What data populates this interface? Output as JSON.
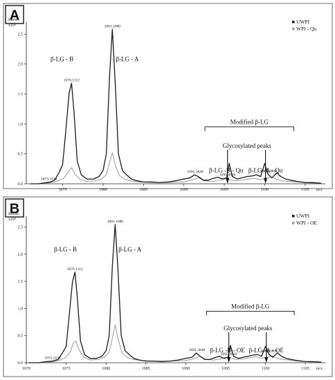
{
  "chart_data": [
    {
      "type": "line",
      "panel_label": "A",
      "ylabel": "Intens.",
      "y_multiplier": "x10⁴",
      "xlabel": "m/z",
      "xlim": [
        1070.5,
        1107.5
      ],
      "ylim": [
        0,
        2.7
      ],
      "x_ticks": [
        1075,
        1080,
        1085,
        1090,
        1095,
        1100,
        1105
      ],
      "x_tick_labels": [
        "1075",
        "1080",
        "1085",
        "1090",
        "1095",
        "1100",
        "1105"
      ],
      "y_ticks": [
        0.0,
        0.5,
        1.0,
        1.5,
        2.0,
        2.5
      ],
      "y_tick_labels": [
        "0.0",
        "0.5",
        "1.0",
        "1.5",
        "2.0",
        "2.5"
      ],
      "legend_position": "top-right",
      "legend": [
        "UWPI",
        "WPI - Qu"
      ],
      "series": [
        {
          "name": "UWPI",
          "color": "#1a1a1a",
          "x": [
            1071.0,
            1072.0,
            1073.0,
            1073.5,
            1074.0,
            1074.6,
            1075.0,
            1075.4,
            1075.8,
            1076.1,
            1076.4,
            1076.8,
            1077.3,
            1078.0,
            1078.8,
            1079.5,
            1080.0,
            1080.4,
            1080.8,
            1081.15,
            1081.5,
            1081.9,
            1082.4,
            1082.9,
            1083.5,
            1084.2,
            1085.0,
            1086.0,
            1087.0,
            1088.0,
            1089.0,
            1090.0,
            1090.8,
            1091.3,
            1091.8,
            1092.4,
            1093.0,
            1093.6,
            1094.2,
            1094.8,
            1095.3,
            1095.6,
            1096.0,
            1096.6,
            1097.2,
            1097.8,
            1098.4,
            1099.0,
            1099.5,
            1100.0,
            1100.4,
            1100.9,
            1101.5,
            1102.0,
            1102.6,
            1103.2,
            1104.0,
            1105.0,
            1106.0,
            1107.0
          ],
          "y": [
            0.0,
            0.0,
            0.02,
            0.03,
            0.06,
            0.2,
            0.32,
            0.9,
            1.52,
            1.68,
            1.2,
            0.38,
            0.15,
            0.08,
            0.08,
            0.12,
            0.22,
            0.5,
            1.8,
            2.58,
            1.7,
            0.5,
            0.22,
            0.15,
            0.08,
            0.05,
            0.03,
            0.03,
            0.02,
            0.03,
            0.05,
            0.08,
            0.1,
            0.15,
            0.12,
            0.06,
            0.06,
            0.09,
            0.11,
            0.08,
            0.1,
            0.34,
            0.12,
            0.08,
            0.1,
            0.12,
            0.13,
            0.15,
            0.12,
            0.34,
            0.16,
            0.1,
            0.18,
            0.12,
            0.08,
            0.06,
            0.04,
            0.02,
            0.02,
            0.01
          ]
        },
        {
          "name": "WPI - Qu",
          "color": "#9a9a9a",
          "x": [
            1071.0,
            1072.0,
            1073.0,
            1074.0,
            1074.6,
            1075.2,
            1075.7,
            1076.1,
            1076.5,
            1077.2,
            1078.0,
            1079.0,
            1079.8,
            1080.4,
            1080.8,
            1081.15,
            1081.5,
            1082.0,
            1082.6,
            1083.4,
            1084.5,
            1086.0,
            1088.0,
            1090.0,
            1091.2,
            1091.8,
            1092.5,
            1093.5,
            1094.4,
            1095.0,
            1095.6,
            1096.3,
            1097.2,
            1098.0,
            1098.8,
            1099.5,
            1100.2,
            1100.8,
            1101.5,
            1102.2,
            1103.0,
            1104.0,
            1105.0,
            1106.0,
            1107.0
          ],
          "y": [
            0.0,
            0.0,
            0.01,
            0.03,
            0.06,
            0.1,
            0.2,
            0.27,
            0.16,
            0.07,
            0.04,
            0.05,
            0.08,
            0.15,
            0.35,
            0.52,
            0.32,
            0.14,
            0.08,
            0.05,
            0.03,
            0.02,
            0.02,
            0.03,
            0.07,
            0.1,
            0.05,
            0.04,
            0.06,
            0.08,
            0.07,
            0.05,
            0.06,
            0.08,
            0.09,
            0.07,
            0.09,
            0.11,
            0.07,
            0.05,
            0.04,
            0.03,
            0.02,
            0.01,
            0.01
          ]
        }
      ],
      "peak_labels": [
        {
          "text": "1073.3143",
          "x": 1073.3
        },
        {
          "text": "1076.1112",
          "x": 1076.1
        },
        {
          "text": "1081.1680",
          "x": 1081.15
        },
        {
          "text": "1091.3848",
          "x": 1091.4
        },
        {
          "text": "1095.4916",
          "x": 1095.4
        },
        {
          "text": "1100.5938",
          "x": 1100.5
        }
      ],
      "annotations": {
        "b_label": "β-LG - B",
        "a_label": "β-LG - A",
        "modified": "Modified β-LG",
        "glycosylated": "Glycosylated peaks",
        "b_mod": "β-LG -B - Qu",
        "a_mod": "β-LG -A - Qu"
      }
    },
    {
      "type": "line",
      "panel_label": "B",
      "ylabel": "Intens.",
      "y_multiplier": "x10⁴",
      "xlabel": "m/z",
      "xlim": [
        1070,
        1107.5
      ],
      "ylim": [
        0,
        2.7
      ],
      "x_ticks": [
        1070,
        1075,
        1080,
        1085,
        1090,
        1095,
        1100,
        1105
      ],
      "x_tick_labels": [
        "1070",
        "1075",
        "1080",
        "1085",
        "1090",
        "1095",
        "1100",
        "1105"
      ],
      "y_ticks": [
        0.0,
        0.5,
        1.0,
        1.5,
        2.0,
        2.5
      ],
      "y_tick_labels": [
        "0.0",
        "0.5",
        "1.0",
        "1.5",
        "2.0",
        "2.5"
      ],
      "legend_position": "top-right",
      "legend": [
        "UWPI",
        "WPI - OE"
      ],
      "series": [
        {
          "name": "UWPI",
          "color": "#1a1a1a",
          "x": [
            1070.3,
            1071.5,
            1072.5,
            1073.3,
            1074.0,
            1074.6,
            1075.0,
            1075.4,
            1075.8,
            1076.1,
            1076.4,
            1076.8,
            1077.3,
            1078.0,
            1078.8,
            1079.5,
            1080.0,
            1080.4,
            1080.8,
            1081.15,
            1081.5,
            1081.9,
            1082.4,
            1082.9,
            1083.5,
            1084.2,
            1085.0,
            1086.0,
            1087.0,
            1088.0,
            1089.0,
            1090.0,
            1090.8,
            1091.3,
            1091.8,
            1092.4,
            1093.0,
            1093.6,
            1094.2,
            1094.8,
            1095.3,
            1095.6,
            1096.0,
            1096.6,
            1097.2,
            1097.8,
            1098.4,
            1099.0,
            1099.5,
            1100.0,
            1100.4,
            1100.9,
            1101.5,
            1102.0,
            1102.6,
            1103.2,
            1104.0,
            1105.0,
            1106.0,
            1107.0
          ],
          "y": [
            0.0,
            0.0,
            0.02,
            0.03,
            0.06,
            0.2,
            0.3,
            0.9,
            1.5,
            1.67,
            1.2,
            0.4,
            0.15,
            0.08,
            0.08,
            0.12,
            0.22,
            0.5,
            1.8,
            2.55,
            1.7,
            0.5,
            0.22,
            0.15,
            0.08,
            0.05,
            0.03,
            0.03,
            0.02,
            0.03,
            0.05,
            0.08,
            0.1,
            0.18,
            0.12,
            0.06,
            0.06,
            0.09,
            0.12,
            0.08,
            0.1,
            0.32,
            0.12,
            0.08,
            0.1,
            0.12,
            0.14,
            0.15,
            0.12,
            0.3,
            0.16,
            0.1,
            0.18,
            0.12,
            0.08,
            0.06,
            0.04,
            0.02,
            0.02,
            0.01
          ]
        },
        {
          "name": "WPI - OE",
          "color": "#9a9a9a",
          "x": [
            1070.3,
            1071.5,
            1072.5,
            1073.5,
            1074.3,
            1074.9,
            1075.5,
            1075.9,
            1076.2,
            1076.6,
            1077.2,
            1078.0,
            1079.0,
            1079.8,
            1080.4,
            1080.8,
            1081.15,
            1081.5,
            1082.0,
            1082.6,
            1083.4,
            1084.5,
            1086.0,
            1088.0,
            1090.0,
            1091.2,
            1091.8,
            1092.5,
            1093.5,
            1094.4,
            1095.0,
            1095.6,
            1096.3,
            1097.2,
            1098.0,
            1098.8,
            1099.5,
            1100.2,
            1100.8,
            1101.5,
            1102.2,
            1103.0,
            1104.0,
            1105.0,
            1106.0,
            1107.0
          ],
          "y": [
            0.0,
            0.0,
            0.01,
            0.02,
            0.05,
            0.09,
            0.2,
            0.36,
            0.4,
            0.25,
            0.1,
            0.05,
            0.06,
            0.1,
            0.2,
            0.45,
            0.7,
            0.45,
            0.18,
            0.1,
            0.06,
            0.04,
            0.03,
            0.03,
            0.04,
            0.08,
            0.12,
            0.06,
            0.05,
            0.07,
            0.1,
            0.09,
            0.06,
            0.07,
            0.09,
            0.11,
            0.08,
            0.1,
            0.13,
            0.08,
            0.06,
            0.05,
            0.03,
            0.02,
            0.01,
            0.01
          ]
        }
      ],
      "peak_labels": [
        {
          "text": "1073.3143",
          "x": 1073.3
        },
        {
          "text": "1076.1112",
          "x": 1076.1
        },
        {
          "text": "1081.1680",
          "x": 1081.15
        },
        {
          "text": "1091.3848",
          "x": 1091.4
        },
        {
          "text": "1095.4916",
          "x": 1095.4
        },
        {
          "text": "1100.5938",
          "x": 1100.5
        }
      ],
      "annotations": {
        "b_label": "β-LG - B",
        "a_label": "β-LG - A",
        "modified": "Modified β-LG",
        "glycosylated": "Glycosylated peaks",
        "b_mod": "β-LG -B - OE",
        "a_mod": "β-LG -A - OE"
      }
    }
  ]
}
